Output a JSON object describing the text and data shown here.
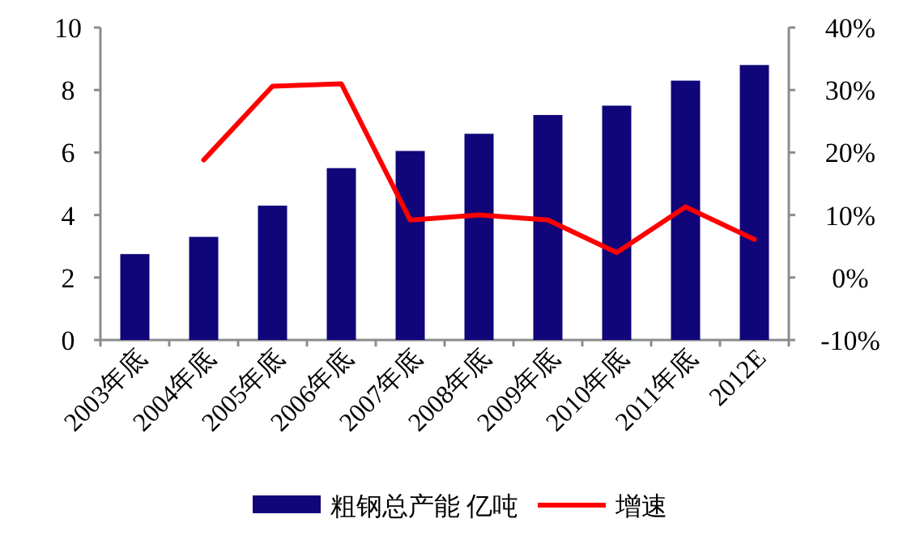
{
  "chart_data": {
    "type": "bar",
    "categories": [
      "2003年底",
      "2004年底",
      "2005年底",
      "2006年底",
      "2007年底",
      "2008年底",
      "2009年底",
      "2010年底",
      "2011年底",
      "2012E"
    ],
    "series": [
      {
        "name": "粗钢总产能 亿吨",
        "color": "#10067a",
        "values": [
          2.75,
          3.3,
          4.3,
          5.5,
          6.05,
          6.6,
          7.2,
          7.5,
          8.3,
          8.8
        ]
      },
      {
        "name": "增速",
        "type": "line",
        "axis": "y2",
        "color": "#ff0000",
        "values": [
          null,
          18.8,
          30.6,
          31.0,
          9.2,
          10.0,
          9.2,
          4.0,
          11.3,
          6.1
        ]
      }
    ],
    "ylim": [
      0,
      10
    ],
    "yticks": [
      0,
      2,
      4,
      6,
      8,
      10
    ],
    "y2lim": [
      -10,
      40
    ],
    "y2ticks": [
      {
        "value": -10,
        "label": "-10%"
      },
      {
        "value": 0,
        "label": "0%"
      },
      {
        "value": 10,
        "label": "10%"
      },
      {
        "value": 20,
        "label": "20%"
      },
      {
        "value": 30,
        "label": "30%"
      },
      {
        "value": 40,
        "label": "40%"
      }
    ],
    "grid": false,
    "legend": "bottom"
  }
}
